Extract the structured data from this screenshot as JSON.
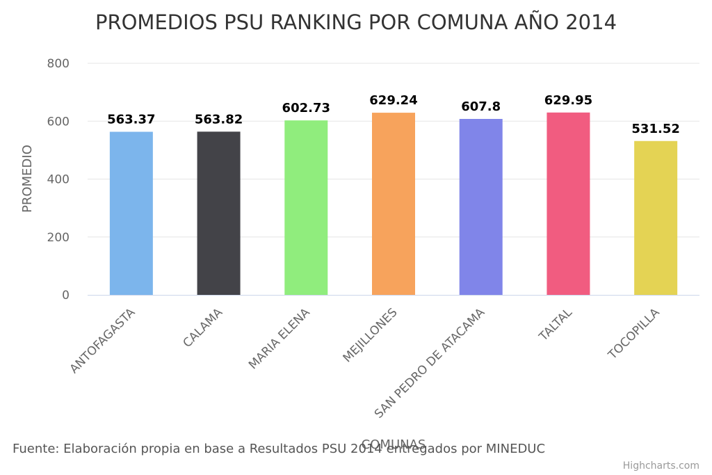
{
  "chart_data": {
    "type": "bar",
    "title": "PROMEDIOS PSU RANKING POR COMUNA AÑO 2014",
    "xlabel": "COMUNAS",
    "ylabel": "PROMEDIO",
    "categories": [
      "ANTOFAGASTA",
      "CALAMA",
      "MARIA ELENA",
      "MEJILLONES",
      "SAN PEDRO DE ATACAMA",
      "TALTAL",
      "TOCOPILLA"
    ],
    "values": [
      563.37,
      563.82,
      602.73,
      629.24,
      607.8,
      629.95,
      531.52
    ],
    "value_labels": [
      "563.37",
      "563.82",
      "602.73",
      "629.24",
      "607.8",
      "629.95",
      "531.52"
    ],
    "colors": [
      "#7cb5ec",
      "#434348",
      "#90ed7d",
      "#f7a35c",
      "#8085e9",
      "#f15c80",
      "#e4d354"
    ],
    "ylim": [
      0,
      800
    ],
    "yticks": [
      0,
      200,
      400,
      600,
      800
    ],
    "ytick_labels": [
      "0",
      "200",
      "400",
      "600",
      "800"
    ],
    "grid": true,
    "legend": "none"
  },
  "source": "Fuente: Elaboración propia en base a Resultados PSU 2014 entregados por MINEDUC",
  "credits": "Highcharts.com"
}
